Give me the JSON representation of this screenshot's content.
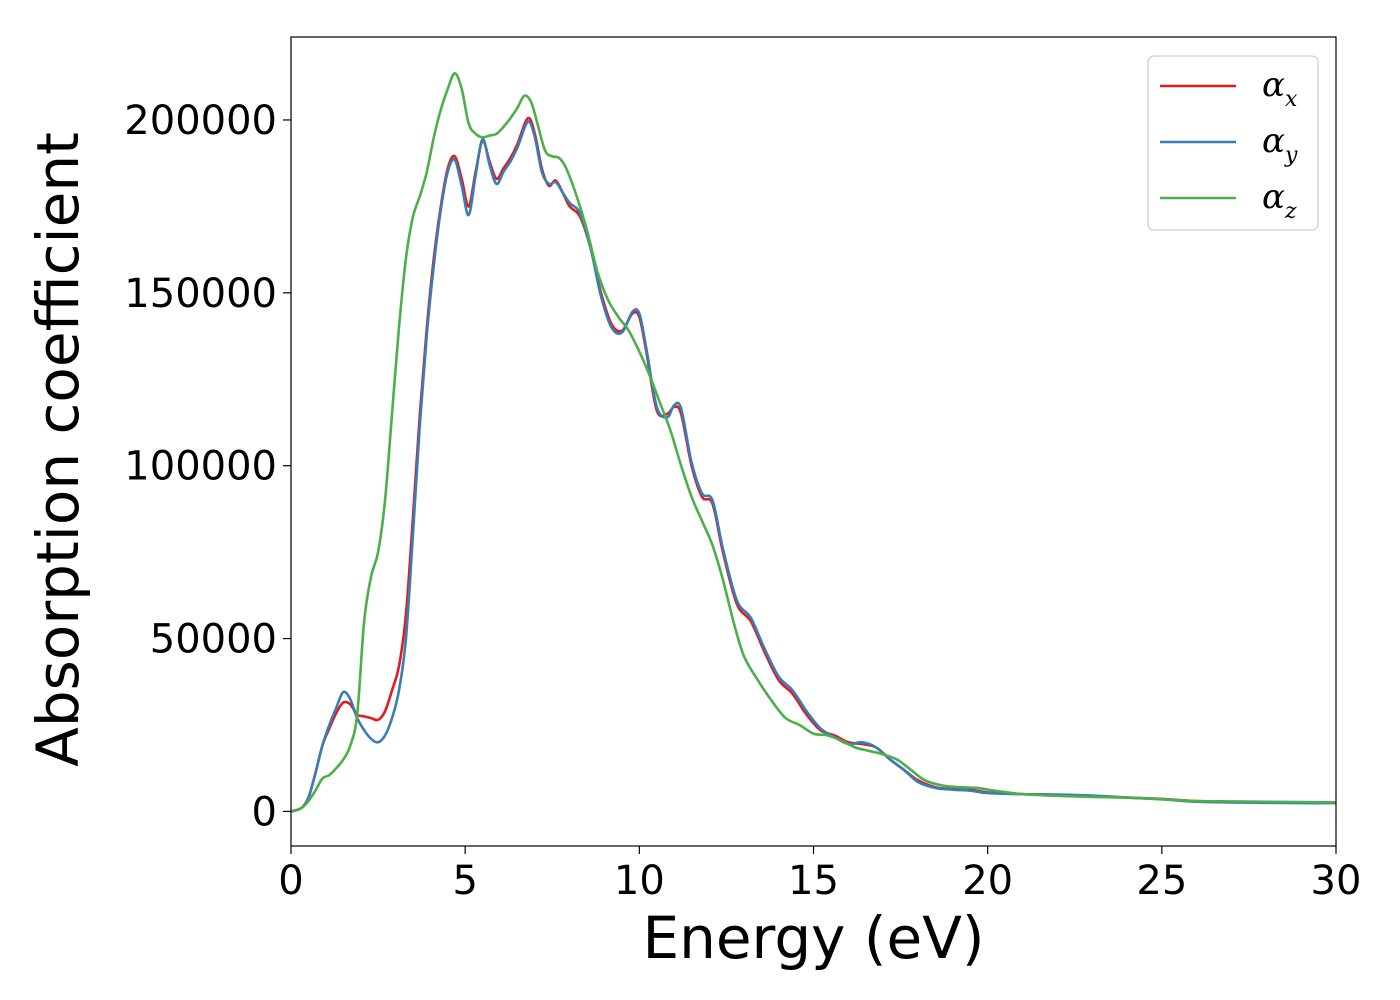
{
  "chart_data": {
    "type": "line",
    "title": "",
    "xlabel": "Energy (eV)",
    "ylabel": "Absorption coefficient",
    "xlim": [
      0,
      30
    ],
    "ylim": [
      -10000,
      224000
    ],
    "xticks": [
      0,
      5,
      10,
      15,
      20,
      25,
      30
    ],
    "xtick_labels": [
      "0",
      "5",
      "10",
      "15",
      "20",
      "25",
      "30"
    ],
    "yticks": [
      0,
      50000,
      100000,
      150000,
      200000
    ],
    "ytick_labels": [
      "0",
      "50000",
      "100000",
      "150000",
      "200000"
    ],
    "grid": false,
    "legend_position": "top-right",
    "series": [
      {
        "name": "α_x",
        "legend_base": "α",
        "legend_sub": "x",
        "color": "#e41a1c",
        "points": [
          [
            0,
            0
          ],
          [
            0.3,
            1000
          ],
          [
            0.5,
            4000
          ],
          [
            0.7,
            11000
          ],
          [
            0.9,
            19000
          ],
          [
            1.1,
            24000
          ],
          [
            1.3,
            28500
          ],
          [
            1.5,
            31500
          ],
          [
            1.7,
            31000
          ],
          [
            1.9,
            28000
          ],
          [
            2.1,
            27500
          ],
          [
            2.3,
            27000
          ],
          [
            2.5,
            26500
          ],
          [
            2.7,
            29000
          ],
          [
            2.9,
            35000
          ],
          [
            3.1,
            42000
          ],
          [
            3.3,
            57000
          ],
          [
            3.5,
            85000
          ],
          [
            3.7,
            115000
          ],
          [
            3.9,
            140000
          ],
          [
            4.1,
            160000
          ],
          [
            4.3,
            175000
          ],
          [
            4.5,
            186000
          ],
          [
            4.7,
            189500
          ],
          [
            4.9,
            183000
          ],
          [
            5.1,
            175000
          ],
          [
            5.3,
            185000
          ],
          [
            5.5,
            194000
          ],
          [
            5.7,
            188000
          ],
          [
            5.9,
            183000
          ],
          [
            6.1,
            186000
          ],
          [
            6.3,
            189000
          ],
          [
            6.5,
            193000
          ],
          [
            6.8,
            200500
          ],
          [
            7.0,
            196000
          ],
          [
            7.2,
            186000
          ],
          [
            7.4,
            181000
          ],
          [
            7.6,
            182500
          ],
          [
            7.8,
            179000
          ],
          [
            8.0,
            175000
          ],
          [
            8.3,
            172000
          ],
          [
            8.6,
            163000
          ],
          [
            8.9,
            150000
          ],
          [
            9.2,
            141000
          ],
          [
            9.5,
            139000
          ],
          [
            9.8,
            144000
          ],
          [
            10.0,
            143000
          ],
          [
            10.2,
            133000
          ],
          [
            10.5,
            116000
          ],
          [
            10.8,
            115000
          ],
          [
            11.0,
            117000
          ],
          [
            11.2,
            115000
          ],
          [
            11.5,
            100000
          ],
          [
            11.8,
            91000
          ],
          [
            12.1,
            89000
          ],
          [
            12.4,
            75000
          ],
          [
            12.8,
            60000
          ],
          [
            13.2,
            55000
          ],
          [
            13.6,
            46000
          ],
          [
            14.0,
            38000
          ],
          [
            14.4,
            34000
          ],
          [
            14.8,
            28000
          ],
          [
            15.2,
            23500
          ],
          [
            15.6,
            22000
          ],
          [
            16.0,
            20000
          ],
          [
            16.4,
            19500
          ],
          [
            16.8,
            18500
          ],
          [
            17.2,
            15000
          ],
          [
            17.6,
            12000
          ],
          [
            18.0,
            9000
          ],
          [
            18.5,
            7000
          ],
          [
            19.0,
            6500
          ],
          [
            19.5,
            6300
          ],
          [
            20.0,
            5500
          ],
          [
            21.0,
            5000
          ],
          [
            22.0,
            4800
          ],
          [
            23.0,
            4500
          ],
          [
            24.0,
            4000
          ],
          [
            25.0,
            3600
          ],
          [
            26.0,
            3000
          ],
          [
            27.0,
            2800
          ],
          [
            28.0,
            2700
          ],
          [
            29.0,
            2600
          ],
          [
            30.0,
            2500
          ]
        ]
      },
      {
        "name": "α_y",
        "legend_base": "α",
        "legend_sub": "y",
        "color": "#377eb8",
        "points": [
          [
            0,
            0
          ],
          [
            0.3,
            1000
          ],
          [
            0.5,
            4000
          ],
          [
            0.7,
            11000
          ],
          [
            0.9,
            19000
          ],
          [
            1.1,
            25000
          ],
          [
            1.3,
            30000
          ],
          [
            1.5,
            34500
          ],
          [
            1.7,
            32500
          ],
          [
            1.9,
            27000
          ],
          [
            2.1,
            23500
          ],
          [
            2.3,
            21000
          ],
          [
            2.5,
            20000
          ],
          [
            2.7,
            22000
          ],
          [
            2.9,
            27000
          ],
          [
            3.1,
            35000
          ],
          [
            3.3,
            50000
          ],
          [
            3.5,
            80000
          ],
          [
            3.7,
            112000
          ],
          [
            3.9,
            138000
          ],
          [
            4.1,
            158000
          ],
          [
            4.3,
            174000
          ],
          [
            4.5,
            185000
          ],
          [
            4.7,
            188500
          ],
          [
            4.9,
            181000
          ],
          [
            5.1,
            172500
          ],
          [
            5.3,
            184000
          ],
          [
            5.5,
            194500
          ],
          [
            5.7,
            187000
          ],
          [
            5.9,
            181500
          ],
          [
            6.1,
            185000
          ],
          [
            6.3,
            188000
          ],
          [
            6.5,
            192000
          ],
          [
            6.8,
            199500
          ],
          [
            7.0,
            195000
          ],
          [
            7.2,
            185000
          ],
          [
            7.4,
            181500
          ],
          [
            7.6,
            182000
          ],
          [
            7.8,
            179000
          ],
          [
            8.0,
            176000
          ],
          [
            8.3,
            173000
          ],
          [
            8.6,
            163000
          ],
          [
            8.9,
            149000
          ],
          [
            9.2,
            140000
          ],
          [
            9.5,
            138500
          ],
          [
            9.8,
            144500
          ],
          [
            10.0,
            144000
          ],
          [
            10.2,
            134000
          ],
          [
            10.5,
            117000
          ],
          [
            10.8,
            114000
          ],
          [
            11.0,
            117500
          ],
          [
            11.2,
            116500
          ],
          [
            11.5,
            101000
          ],
          [
            11.8,
            92000
          ],
          [
            12.1,
            90000
          ],
          [
            12.4,
            76000
          ],
          [
            12.8,
            61000
          ],
          [
            13.2,
            56000
          ],
          [
            13.6,
            47000
          ],
          [
            14.0,
            39000
          ],
          [
            14.4,
            35000
          ],
          [
            14.8,
            29000
          ],
          [
            15.2,
            24000
          ],
          [
            15.6,
            21500
          ],
          [
            16.0,
            19500
          ],
          [
            16.4,
            20000
          ],
          [
            16.8,
            18500
          ],
          [
            17.2,
            15000
          ],
          [
            17.6,
            12000
          ],
          [
            18.0,
            8500
          ],
          [
            18.5,
            6800
          ],
          [
            19.0,
            6300
          ],
          [
            19.5,
            6000
          ],
          [
            20.0,
            5300
          ],
          [
            21.0,
            5000
          ],
          [
            22.0,
            4900
          ],
          [
            23.0,
            4600
          ],
          [
            24.0,
            4000
          ],
          [
            25.0,
            3500
          ],
          [
            26.0,
            2800
          ],
          [
            27.0,
            2600
          ],
          [
            28.0,
            2500
          ],
          [
            29.0,
            2400
          ],
          [
            30.0,
            2400
          ]
        ]
      },
      {
        "name": "α_z",
        "legend_base": "α",
        "legend_sub": "z",
        "color": "#4daf4a",
        "points": [
          [
            0,
            0
          ],
          [
            0.3,
            1000
          ],
          [
            0.5,
            3000
          ],
          [
            0.7,
            6000
          ],
          [
            0.9,
            9500
          ],
          [
            1.1,
            10500
          ],
          [
            1.3,
            12500
          ],
          [
            1.5,
            15000
          ],
          [
            1.7,
            19000
          ],
          [
            1.9,
            28000
          ],
          [
            2.1,
            55000
          ],
          [
            2.3,
            68000
          ],
          [
            2.5,
            75000
          ],
          [
            2.7,
            90000
          ],
          [
            2.9,
            115000
          ],
          [
            3.1,
            140000
          ],
          [
            3.3,
            160000
          ],
          [
            3.5,
            172000
          ],
          [
            3.7,
            178000
          ],
          [
            3.9,
            185000
          ],
          [
            4.1,
            195000
          ],
          [
            4.3,
            203000
          ],
          [
            4.5,
            209000
          ],
          [
            4.7,
            213500
          ],
          [
            4.9,
            209000
          ],
          [
            5.1,
            199000
          ],
          [
            5.3,
            196000
          ],
          [
            5.5,
            195000
          ],
          [
            5.7,
            195500
          ],
          [
            5.9,
            196000
          ],
          [
            6.1,
            198000
          ],
          [
            6.3,
            200500
          ],
          [
            6.5,
            203500
          ],
          [
            6.7,
            207000
          ],
          [
            6.9,
            205000
          ],
          [
            7.1,
            198000
          ],
          [
            7.3,
            191000
          ],
          [
            7.5,
            189500
          ],
          [
            7.7,
            189000
          ],
          [
            7.9,
            186000
          ],
          [
            8.2,
            178000
          ],
          [
            8.5,
            168000
          ],
          [
            8.8,
            156000
          ],
          [
            9.1,
            148000
          ],
          [
            9.4,
            143000
          ],
          [
            9.7,
            139000
          ],
          [
            10.0,
            133000
          ],
          [
            10.3,
            126000
          ],
          [
            10.6,
            118000
          ],
          [
            10.9,
            110000
          ],
          [
            11.2,
            100000
          ],
          [
            11.5,
            91000
          ],
          [
            11.8,
            84000
          ],
          [
            12.1,
            77000
          ],
          [
            12.4,
            67000
          ],
          [
            12.7,
            55000
          ],
          [
            13.0,
            45000
          ],
          [
            13.4,
            38000
          ],
          [
            13.8,
            32000
          ],
          [
            14.2,
            27000
          ],
          [
            14.6,
            25000
          ],
          [
            15.0,
            22500
          ],
          [
            15.4,
            22000
          ],
          [
            15.8,
            20500
          ],
          [
            16.2,
            18500
          ],
          [
            16.6,
            17500
          ],
          [
            17.0,
            16500
          ],
          [
            17.4,
            15000
          ],
          [
            17.8,
            12000
          ],
          [
            18.2,
            9000
          ],
          [
            18.7,
            7500
          ],
          [
            19.2,
            7000
          ],
          [
            19.7,
            6800
          ],
          [
            20.2,
            6000
          ],
          [
            21.0,
            5000
          ],
          [
            22.0,
            4500
          ],
          [
            23.0,
            4200
          ],
          [
            24.0,
            4000
          ],
          [
            25.0,
            3500
          ],
          [
            26.0,
            3000
          ],
          [
            27.0,
            2900
          ],
          [
            28.0,
            2800
          ],
          [
            29.0,
            2700
          ],
          [
            30.0,
            2600
          ]
        ]
      }
    ]
  }
}
